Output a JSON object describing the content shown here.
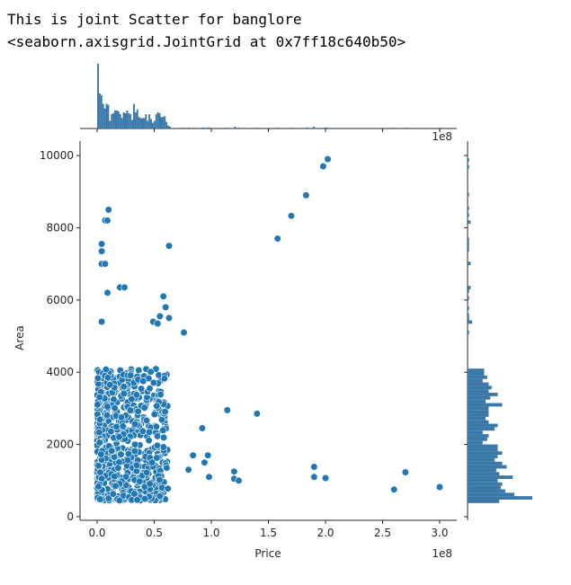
{
  "output": {
    "line1": "This is joint Scatter for banglore",
    "line2": "<seaborn.axisgrid.JointGrid at 0x7ff18c640b50>"
  },
  "chart_data": {
    "type": "scatter",
    "title": "",
    "xlabel": "Price",
    "ylabel": "Area",
    "x_offset_label": "1e8",
    "top_offset_label": "1e8",
    "xlim": [
      -0.15,
      3.15
    ],
    "ylim": [
      -100,
      10400
    ],
    "x_ticks": [
      0.0,
      0.5,
      1.0,
      1.5,
      2.0,
      2.5,
      3.0
    ],
    "x_tick_labels": [
      "0.0",
      "0.5",
      "1.0",
      "1.5",
      "2.0",
      "2.5",
      "3.0"
    ],
    "y_ticks": [
      0,
      2000,
      4000,
      6000,
      8000,
      10000
    ],
    "y_tick_labels": [
      "0",
      "2000",
      "4000",
      "6000",
      "8000",
      "10000"
    ],
    "colors": {
      "point": "#1f77b4",
      "point_edge": "#ffffff",
      "bar": "#3a78a8"
    },
    "notable_points": [
      [
        2.02,
        9900
      ],
      [
        1.98,
        9700
      ],
      [
        1.83,
        8900
      ],
      [
        1.7,
        8330
      ],
      [
        1.58,
        7700
      ],
      [
        0.63,
        7500
      ],
      [
        0.1,
        8500
      ],
      [
        0.07,
        8200
      ],
      [
        0.09,
        8200
      ],
      [
        0.04,
        7550
      ],
      [
        0.04,
        7350
      ],
      [
        0.04,
        7000
      ],
      [
        0.07,
        7000
      ],
      [
        0.09,
        6200
      ],
      [
        0.2,
        6350
      ],
      [
        0.24,
        6350
      ],
      [
        0.58,
        6100
      ],
      [
        0.6,
        5800
      ],
      [
        0.49,
        5400
      ],
      [
        0.53,
        5350
      ],
      [
        0.55,
        5550
      ],
      [
        0.63,
        5500
      ],
      [
        0.76,
        5100
      ],
      [
        0.04,
        5400
      ],
      [
        1.14,
        2950
      ],
      [
        1.4,
        2850
      ],
      [
        0.92,
        2450
      ],
      [
        0.97,
        1700
      ],
      [
        0.84,
        1700
      ],
      [
        0.94,
        1500
      ],
      [
        0.8,
        1300
      ],
      [
        0.98,
        1100
      ],
      [
        1.2,
        1250
      ],
      [
        1.2,
        1050
      ],
      [
        1.24,
        1000
      ],
      [
        1.9,
        1380
      ],
      [
        1.9,
        1100
      ],
      [
        2.0,
        1070
      ],
      [
        2.7,
        1230
      ],
      [
        2.6,
        750
      ],
      [
        3.0,
        820
      ]
    ],
    "dense_cluster": {
      "x_range": [
        0.0,
        0.62
      ],
      "y_range": [
        450,
        4100
      ],
      "count": 700
    }
  }
}
